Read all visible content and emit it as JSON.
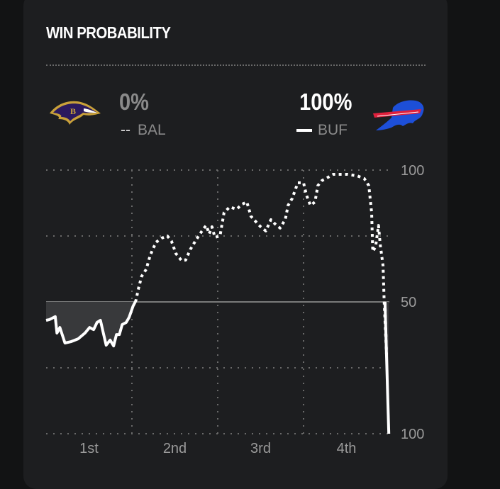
{
  "title": "WIN PROBABILITY",
  "teams": {
    "away": {
      "abbr": "BAL",
      "pct": "0%",
      "legend_marker": "--",
      "line_style": "dotted",
      "color": "#8a8a8a"
    },
    "home": {
      "abbr": "BUF",
      "pct": "100%",
      "legend_marker": "solid",
      "line_style": "solid",
      "color": "#ffffff"
    }
  },
  "chart_data": {
    "type": "line",
    "title": "WIN PROBABILITY",
    "xlabel": "",
    "ylabel": "",
    "x_unit": "game minute",
    "xlim": [
      0,
      60
    ],
    "y_meaning": "BAL win probability (%); below 50 = BUF favored",
    "ylim": [
      0,
      100
    ],
    "y_tick_labels": [
      "100",
      "50",
      "100"
    ],
    "y_ticks": [
      100,
      50,
      0
    ],
    "x_tick_labels": [
      "1st",
      "2nd",
      "3rd",
      "4th"
    ],
    "quarter_boundaries": [
      15,
      30,
      45
    ],
    "grid": true,
    "series": [
      {
        "name": "BAL win probability",
        "x": [
          0,
          0.6,
          1.6,
          1.9,
          2.4,
          3.3,
          4.3,
          5.6,
          6.8,
          7.6,
          8.3,
          8.9,
          9.5,
          10.0,
          10.5,
          11.2,
          11.8,
          12.3,
          12.8,
          13.3,
          14.0,
          14.5,
          15.2,
          15.7,
          16.2,
          16.7,
          17.5,
          18.2,
          19.2,
          20.2,
          21.2,
          21.9,
          22.7,
          23.7,
          24.4,
          25.2,
          26.1,
          26.9,
          27.6,
          28.0,
          28.5,
          29.0,
          29.5,
          30.4,
          31.1,
          32.1,
          33.3,
          34.3,
          35.1,
          35.8,
          36.6,
          37.5,
          38.4,
          39.3,
          40.0,
          40.9,
          41.8,
          42.3,
          43.0,
          44.0,
          45.0,
          45.5,
          46.2,
          47.0,
          47.5,
          48.2,
          48.9,
          50.2,
          52.7,
          54.4,
          55.6,
          56.4,
          56.9,
          57.1,
          57.6,
          58.1,
          58.4,
          58.9,
          59.1,
          59.5,
          59.9
        ],
        "y": [
          43,
          43.3,
          44.4,
          38.2,
          40.3,
          34.4,
          34.9,
          36,
          38.2,
          40.3,
          39.5,
          42.2,
          43,
          38.2,
          33.6,
          35.5,
          33.3,
          37.6,
          37.6,
          41.4,
          42.2,
          44.1,
          48.4,
          50.5,
          55.6,
          59.7,
          62.4,
          67.7,
          72.6,
          74.2,
          75,
          73.1,
          68.3,
          65.6,
          65.9,
          69.9,
          73.1,
          75.8,
          78,
          79,
          75.8,
          78.5,
          74.5,
          75,
          83.9,
          86,
          85.2,
          87.1,
          87.9,
          82.5,
          80.6,
          78.5,
          76.9,
          81.2,
          79.6,
          78,
          81.2,
          86.6,
          89.2,
          95.2,
          95.2,
          90.6,
          86.6,
          87.9,
          94.1,
          96,
          96.8,
          98.4,
          98.4,
          97.8,
          96.8,
          94.1,
          83.9,
          69.1,
          71,
          79,
          71.8,
          63.7,
          50,
          30.1,
          0
        ]
      }
    ]
  }
}
